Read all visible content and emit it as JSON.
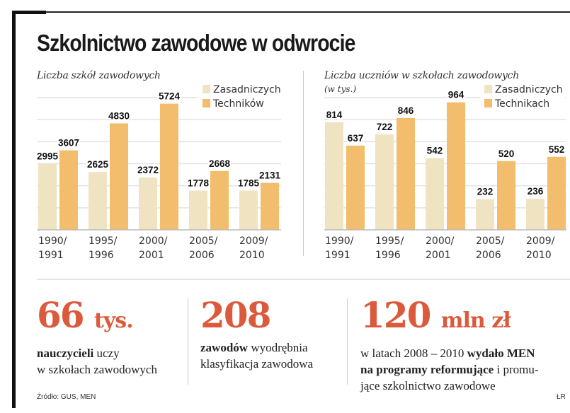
{
  "title": "Szkolnictwo zawodowe w odwrocie",
  "colors": {
    "zasadnicze": "#f0e3c2",
    "technika": "#f2bd6c",
    "accent": "#dc5a3c"
  },
  "chart_data": [
    {
      "type": "bar",
      "title": "Liczba szkół zawodowych",
      "subtitle": "",
      "categories": [
        [
          "1990/",
          "1991"
        ],
        [
          "1995/",
          "1996"
        ],
        [
          "2000/",
          "2001"
        ],
        [
          "2005/",
          "2006"
        ],
        [
          "2009/",
          "2010"
        ]
      ],
      "series": [
        {
          "name": "Zasadniczych",
          "values": [
            2995,
            2625,
            2372,
            1778,
            1785
          ]
        },
        {
          "name": "Techników",
          "values": [
            3607,
            4830,
            5724,
            2668,
            2131
          ]
        }
      ],
      "ylim": [
        0,
        6000
      ],
      "gridlines": 6,
      "legend": "top-right"
    },
    {
      "type": "bar",
      "title": "Liczba uczniów w szkołach zawodowych",
      "subtitle": "(w tys.)",
      "categories": [
        [
          "1990/",
          "1991"
        ],
        [
          "1995/",
          "1996"
        ],
        [
          "2000/",
          "2001"
        ],
        [
          "2005/",
          "2006"
        ],
        [
          "2009/",
          "2010"
        ]
      ],
      "series": [
        {
          "name": "Zasadniczych",
          "values": [
            814,
            722,
            542,
            232,
            236
          ]
        },
        {
          "name": "Technikach",
          "values": [
            637,
            846,
            964,
            520,
            552
          ]
        }
      ],
      "ylim": [
        0,
        1000
      ],
      "gridlines": 6,
      "legend": "top-right"
    }
  ],
  "stats": [
    {
      "number": "66",
      "unit": "tys.",
      "bold": "nauczycieli",
      "text1": " uczy",
      "text2": "w szkołach zawodowych"
    },
    {
      "number": "208",
      "unit": "",
      "bold": "zawodów",
      "text1": " wyodrębnia",
      "text2": "klasyfikacja zawodowa"
    },
    {
      "number": "120",
      "unit": "mln zł",
      "pre": "w latach 2008 – 2010 ",
      "bold": "wydało MEN",
      "bold2": "na programy reformujące",
      "text1": " i promu-",
      "text2": "jące szkolnictwo zawodowe"
    }
  ],
  "source": "Źródło: GUS, MEN",
  "author": "ŁR"
}
